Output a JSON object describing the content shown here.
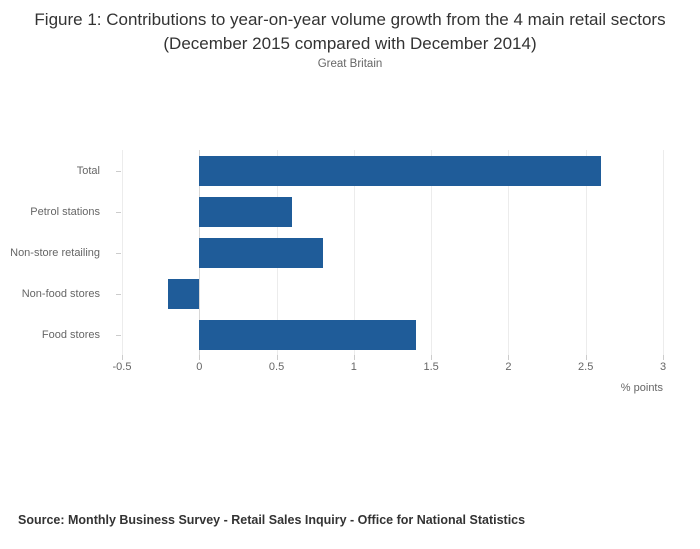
{
  "title": "Figure 1: Contributions to year-on-year volume growth from the 4 main retail sectors (December 2015 compared with December 2014)",
  "subtitle": "Great Britain",
  "source": "Source: Monthly Business Survey - Retail Sales Inquiry - Office for National Statistics",
  "chart_data": {
    "type": "bar",
    "orientation": "horizontal",
    "title": "Figure 1: Contributions to year-on-year volume growth from the 4 main retail sectors (December 2015 compared with December 2014)",
    "subtitle": "Great Britain",
    "categories": [
      "Total",
      "Petrol stations",
      "Non-store retailing",
      "Non-food stores",
      "Food stores"
    ],
    "values": [
      2.6,
      0.6,
      0.8,
      -0.2,
      1.4
    ],
    "xlabel": "% points",
    "ylabel": "",
    "xlim": [
      -0.5,
      3
    ],
    "xticks": [
      -0.5,
      0,
      0.5,
      1,
      1.5,
      2,
      2.5,
      3
    ],
    "xtick_labels": [
      "-0.5",
      "0",
      "0.5",
      "1",
      "1.5",
      "2",
      "2.5",
      "3"
    ],
    "bar_color": "#1f5c99",
    "grid": true,
    "legend": "none"
  }
}
